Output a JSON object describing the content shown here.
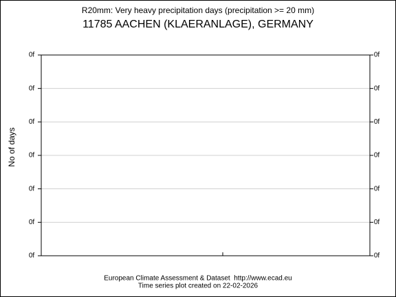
{
  "chart_data": {
    "type": "line",
    "title": "R20mm: Very heavy precipitation days (precipitation >= 20 mm)",
    "subtitle": "11785 AACHEN (KLAERANLAGE), GERMANY",
    "ylabel": "No of days",
    "ylim": [
      0,
      6
    ],
    "yticks": [
      {
        "value": 0,
        "label": "0f"
      },
      {
        "value": 1,
        "label": "0f"
      },
      {
        "value": 2,
        "label": "0f"
      },
      {
        "value": 3,
        "label": "0f"
      },
      {
        "value": 4,
        "label": "0f"
      },
      {
        "value": 5,
        "label": "0f"
      },
      {
        "value": 6,
        "label": "0f"
      }
    ],
    "y2lim": [
      0,
      6
    ],
    "y2ticks": [
      {
        "value": 0,
        "label": "0f"
      },
      {
        "value": 1,
        "label": "0f"
      },
      {
        "value": 2,
        "label": "0f"
      },
      {
        "value": 3,
        "label": "0f"
      },
      {
        "value": 4,
        "label": "0f"
      },
      {
        "value": 5,
        "label": "0f"
      },
      {
        "value": 6,
        "label": "0f"
      }
    ],
    "grid": true,
    "series": []
  },
  "footer": [
    "European Climate Assessment & Dataset  http://www.ecad.eu",
    "Time series plot created on 22-02-2026"
  ]
}
